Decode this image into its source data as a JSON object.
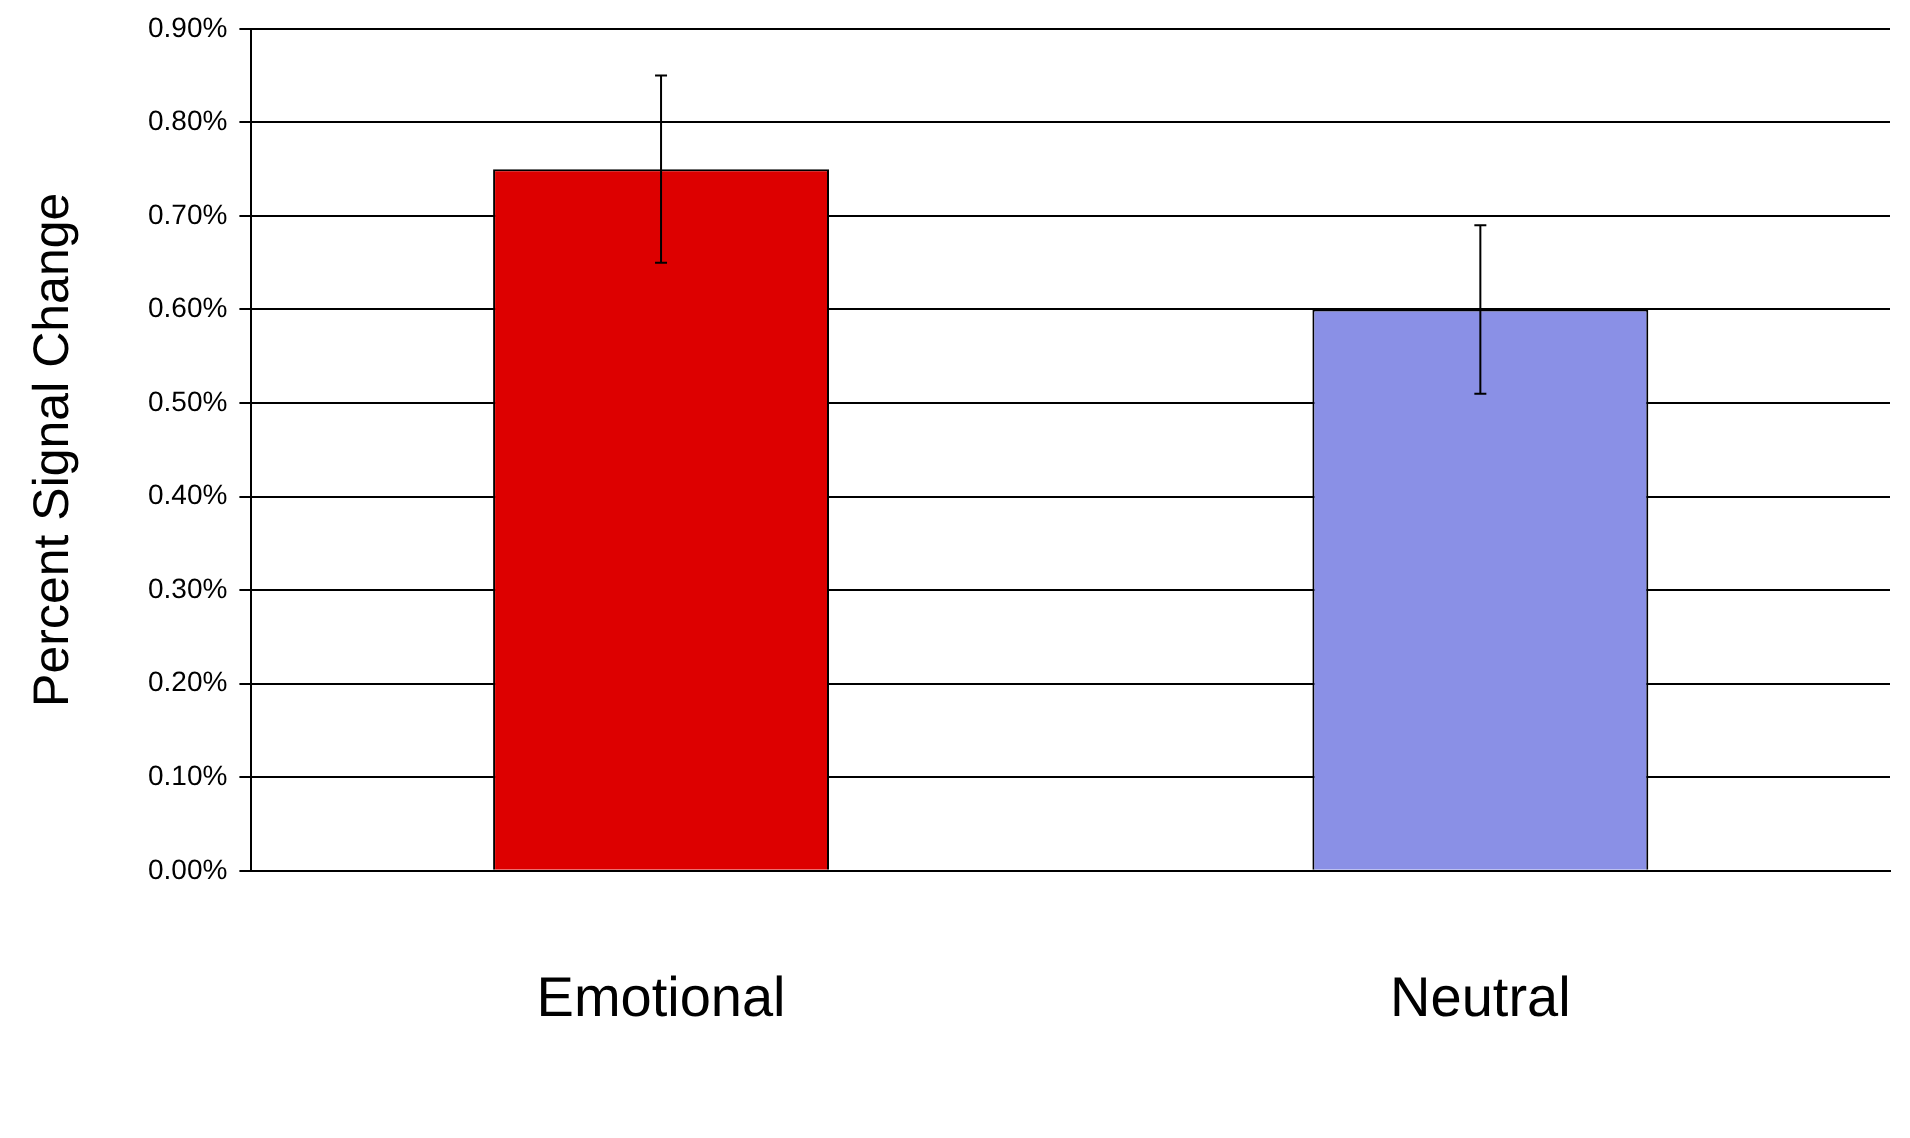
{
  "chart_data": {
    "type": "bar",
    "ylabel": "Percent Signal Change",
    "categories": [
      "Emotional",
      "Neutral"
    ],
    "values": [
      0.75,
      0.6
    ],
    "colors": [
      "#dd0000",
      "#8a90e6"
    ],
    "errors": [
      0.1,
      0.09
    ],
    "ylim": [
      0,
      0.9
    ],
    "yticks": [
      {
        "value": 0,
        "label": "0.00%"
      },
      {
        "value": 0.1,
        "label": "0.10%"
      },
      {
        "value": 0.2,
        "label": "0.20%"
      },
      {
        "value": 0.3,
        "label": "0.30%"
      },
      {
        "value": 0.4,
        "label": "0.40%"
      },
      {
        "value": 0.5,
        "label": "0.50%"
      },
      {
        "value": 0.6,
        "label": "0.60%"
      },
      {
        "value": 0.7,
        "label": "0.70%"
      },
      {
        "value": 0.8,
        "label": "0.80%"
      },
      {
        "value": 0.9,
        "label": "0.90%"
      }
    ],
    "grid": "y",
    "legend": false
  }
}
